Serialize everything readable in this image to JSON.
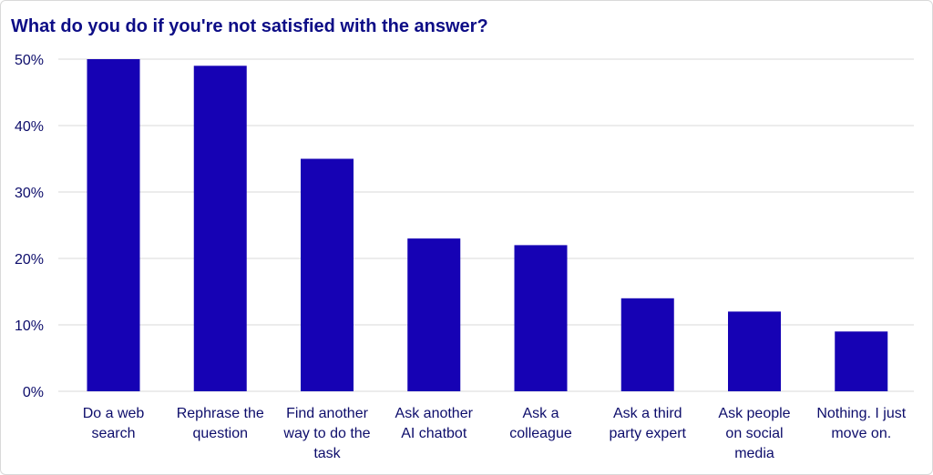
{
  "chart_data": {
    "type": "bar",
    "title": "What do you do if you're not satisfied with the answer?",
    "xlabel": "",
    "ylabel": "",
    "ylim": [
      0,
      50
    ],
    "yticks": [
      "0%",
      "10%",
      "20%",
      "30%",
      "40%",
      "50%"
    ],
    "ytick_values": [
      0,
      10,
      20,
      30,
      40,
      50
    ],
    "grid": true,
    "bar_color": "#1602b4",
    "categories": [
      [
        "Do a web",
        "search"
      ],
      [
        "Rephrase the",
        "question"
      ],
      [
        "Find another",
        "way to do the",
        "task"
      ],
      [
        "Ask another",
        "AI chatbot"
      ],
      [
        "Ask a",
        "colleague"
      ],
      [
        "Ask a third",
        "party expert"
      ],
      [
        "Ask people",
        "on social",
        "media"
      ],
      [
        "Nothing. I just",
        "move on."
      ]
    ],
    "values": [
      50,
      49,
      35,
      23,
      22,
      14,
      12,
      9
    ]
  }
}
